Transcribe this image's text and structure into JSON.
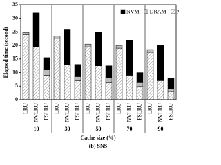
{
  "chart_data": {
    "type": "stacked-bar",
    "y_label": "Elapsed time (second)",
    "x_label": "Cache size (%)",
    "caption": "(b) SNS",
    "groups": [
      "10",
      "30",
      "50",
      "70",
      "90"
    ],
    "categories": [
      "LRU",
      "NVLRU",
      "FSLRU",
      "LRU",
      "NVLRU",
      "FSLRU",
      "LRU",
      "NVLRU",
      "FSLRU",
      "LRU",
      "NVLRU",
      "FSLRU",
      "LRU",
      "NVLRU",
      "FSLRU"
    ],
    "series": [
      {
        "name": "NVM",
        "color": "#000000",
        "values": [
          0,
          12.5,
          4.5,
          0,
          13,
          4.5,
          0,
          12.5,
          4.5,
          0,
          13,
          3.5,
          0,
          13,
          4
        ]
      },
      {
        "name": "DRAM",
        "color": "#bdbdbd",
        "values": [
          0.8,
          0,
          2,
          1,
          0,
          1.5,
          1,
          0,
          1.5,
          1,
          0,
          1.5,
          1,
          0,
          1
        ]
      },
      {
        "name": "NAND",
        "color": "#ffffff",
        "hatch": true,
        "values": [
          24,
          19.5,
          9,
          22.5,
          13,
          7,
          19.5,
          12.5,
          6.5,
          19,
          9,
          5,
          17.5,
          7,
          3
        ]
      }
    ],
    "ylim": [
      0,
      35
    ],
    "yticks": [
      0,
      5,
      10,
      15,
      20,
      25,
      30,
      35
    ],
    "legend": "top-right"
  }
}
